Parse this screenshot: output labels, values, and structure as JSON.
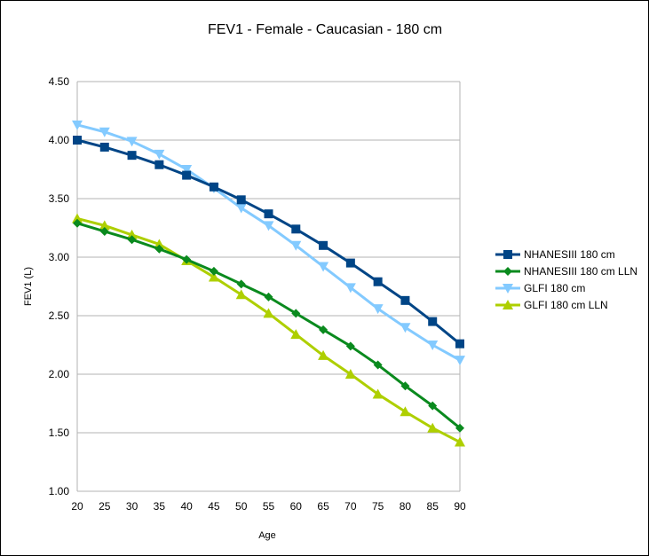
{
  "chart_data": {
    "type": "line",
    "title": "FEV1 - Female - Caucasian - 180 cm",
    "xlabel": "Age",
    "ylabel": "FEV1 (L)",
    "x": [
      20,
      25,
      30,
      35,
      40,
      45,
      50,
      55,
      60,
      65,
      70,
      75,
      80,
      85,
      90
    ],
    "ylim": [
      1.0,
      4.5
    ],
    "yticks": [
      "1.00",
      "1.50",
      "2.00",
      "2.50",
      "3.00",
      "3.50",
      "4.00",
      "4.50"
    ],
    "grid": "horizontal",
    "legend": "right",
    "series": [
      {
        "name": "NHANESIII 180 cm",
        "color": "#004586",
        "marker": "square",
        "values": [
          4.0,
          3.94,
          3.87,
          3.79,
          3.7,
          3.6,
          3.49,
          3.37,
          3.24,
          3.1,
          2.95,
          2.79,
          2.63,
          2.45,
          2.26
        ]
      },
      {
        "name": "NHANESIII 180 cm LLN",
        "color": "#0a8a1e",
        "marker": "diamond",
        "values": [
          3.29,
          3.22,
          3.15,
          3.07,
          2.98,
          2.88,
          2.77,
          2.66,
          2.52,
          2.38,
          2.24,
          2.08,
          1.9,
          1.73,
          1.54
        ]
      },
      {
        "name": "GLFI 180 cm",
        "color": "#83caff",
        "marker": "triangle-down",
        "values": [
          4.13,
          4.07,
          3.99,
          3.88,
          3.75,
          3.59,
          3.42,
          3.27,
          3.1,
          2.92,
          2.74,
          2.56,
          2.4,
          2.25,
          2.12
        ]
      },
      {
        "name": "GLFI 180 cm LLN",
        "color": "#aecf00",
        "marker": "triangle-up",
        "values": [
          3.33,
          3.27,
          3.19,
          3.11,
          2.97,
          2.83,
          2.68,
          2.52,
          2.34,
          2.16,
          2.0,
          1.83,
          1.68,
          1.54,
          1.42
        ]
      }
    ]
  }
}
